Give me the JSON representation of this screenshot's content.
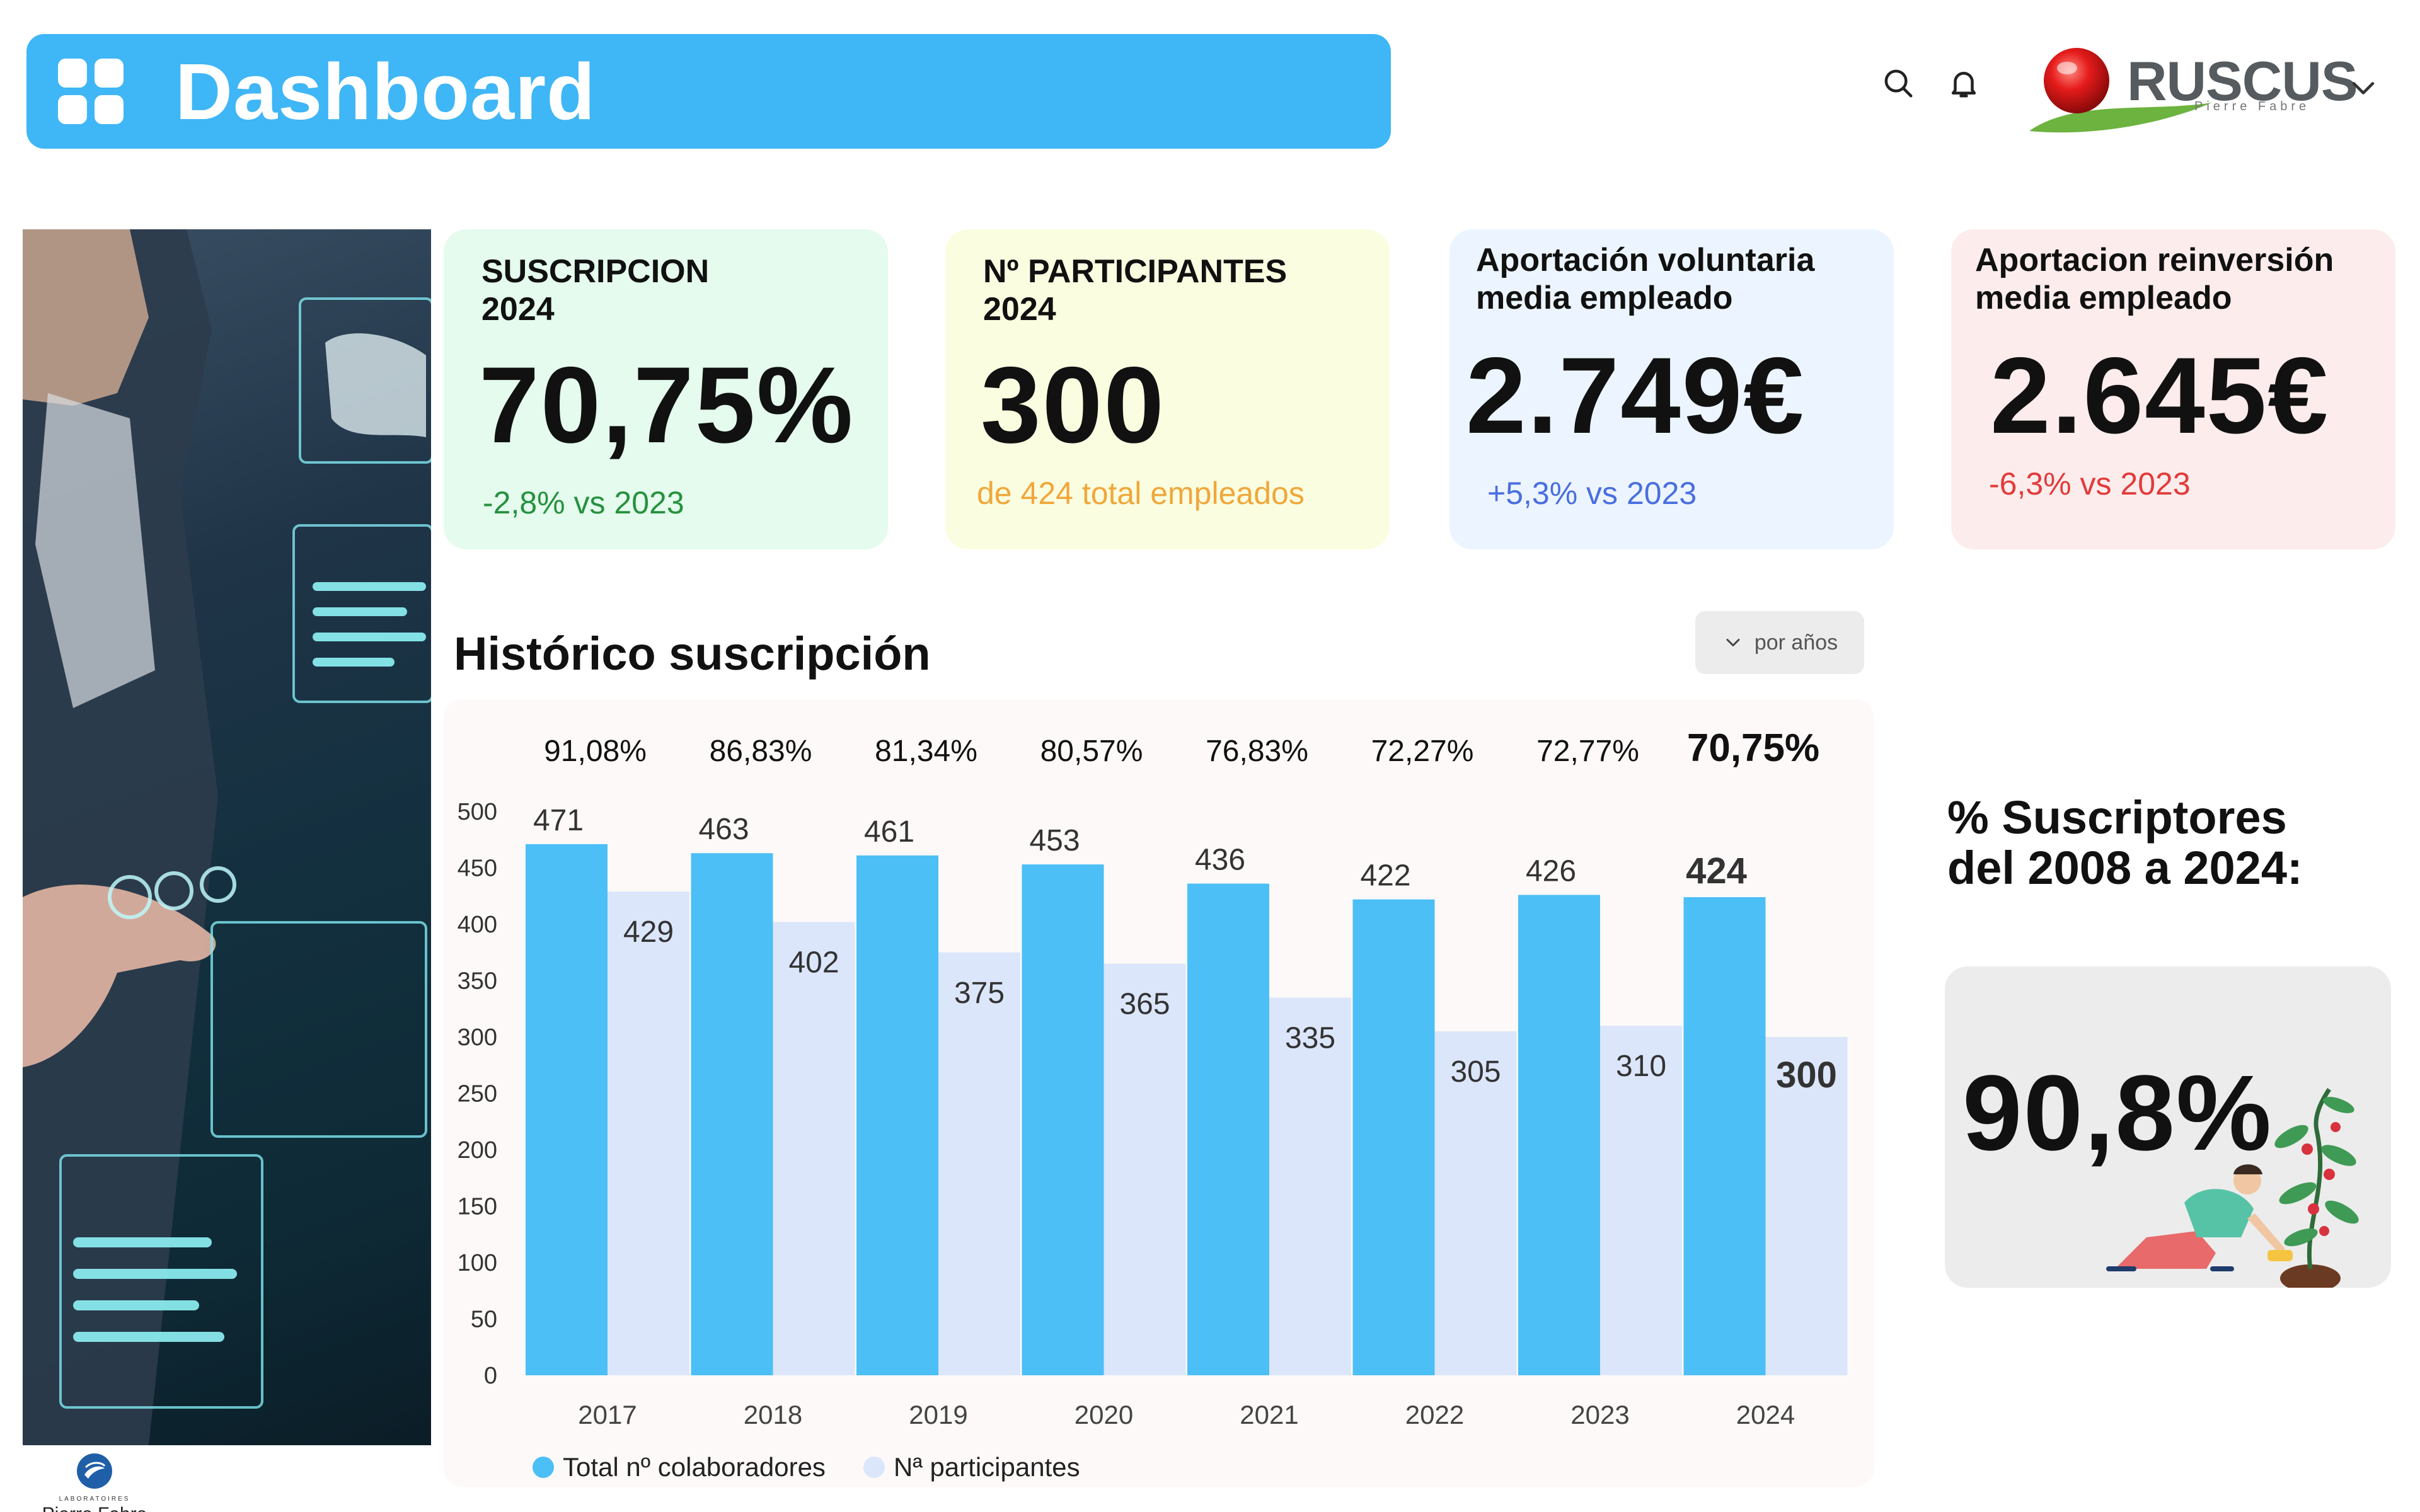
{
  "header": {
    "title": "Dashboard"
  },
  "brand": {
    "name": "RUSCUS",
    "subtitle": "Pierre Fabre"
  },
  "lab_logo": {
    "small": "LABORATOIRES",
    "name": "Pierre Fabre"
  },
  "kpis": [
    {
      "label": "SUSCRIPCION\n2024",
      "value": "70,75%",
      "delta": "-2,8% vs 2023"
    },
    {
      "label": "Nº PARTICIPANTES\n2024",
      "value": "300",
      "delta": "de 424 total empleados"
    },
    {
      "label": "Aportación voluntaria\nmedia empleado",
      "value": "2.749€",
      "delta": "+5,3% vs 2023"
    },
    {
      "label": "Aportacion reinversión\nmedia empleado",
      "value": "2.645€",
      "delta": "-6,3% vs 2023"
    }
  ],
  "chart": {
    "title": "Histórico suscripción",
    "filter_label": "por años"
  },
  "chart_data": {
    "type": "bar",
    "categories": [
      "2017",
      "2018",
      "2019",
      "2020",
      "2021",
      "2022",
      "2023",
      "2024"
    ],
    "series": [
      {
        "name": "Total nº colaboradores",
        "values": [
          471,
          463,
          461,
          453,
          436,
          422,
          426,
          424
        ],
        "color": "#4cbff7"
      },
      {
        "name": "Nª participantes",
        "values": [
          429,
          402,
          375,
          365,
          335,
          305,
          310,
          300
        ],
        "color": "#dce6fb"
      }
    ],
    "percentages": [
      "91,08%",
      "86,83%",
      "81,34%",
      "80,57%",
      "76,83%",
      "72,27%",
      "72,77%",
      "70,75%"
    ],
    "yticks": [
      "0",
      "50",
      "100",
      "150",
      "200",
      "250",
      "300",
      "350",
      "400",
      "450",
      "500"
    ],
    "ylim": [
      0,
      500
    ],
    "legend_position": "bottom-left",
    "grid": false
  },
  "summary": {
    "title": "% Suscriptores\ndel 2008 a 2024:",
    "value": "90,8%"
  },
  "colors": {
    "header": "#3fb6f6",
    "card1": "#e4fbed",
    "card2": "#fbfde0",
    "card3": "#ecf5ff",
    "card4": "#fdecec",
    "delta_green": "#27913f",
    "delta_orange": "#f0a73a",
    "delta_blue": "#4a6ee0",
    "delta_red": "#e23b3b"
  },
  "icons": [
    "grid-icon",
    "search-icon",
    "bell-icon",
    "chevron-down-icon",
    "ruscus-logo",
    "pierre-fabre-logo"
  ]
}
